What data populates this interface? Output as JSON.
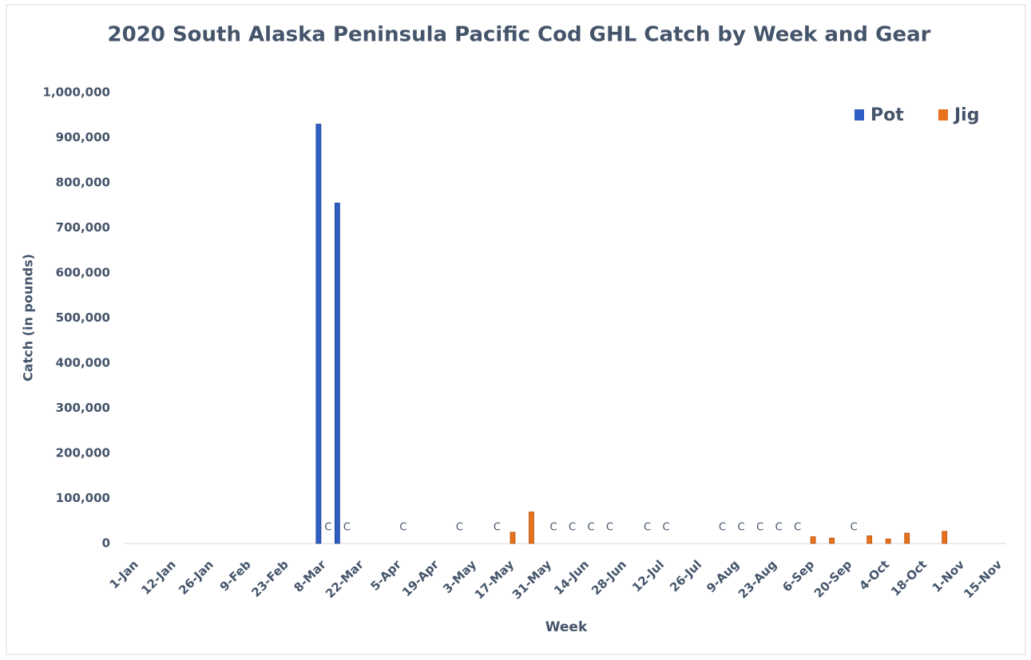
{
  "chart_data": {
    "type": "bar",
    "title": "2020 South Alaska Peninsula Pacific Cod GHL Catch by Week and Gear",
    "x_label": "Week",
    "y_label": "Catch (in pounds)",
    "legend": "top-right",
    "categories": [
      "1-Jan",
      null,
      "12-Jan",
      null,
      "26-Jan",
      null,
      "9-Feb",
      null,
      "23-Feb",
      null,
      "8-Mar",
      null,
      "22-Mar",
      null,
      "5-Apr",
      null,
      "19-Apr",
      null,
      "3-May",
      null,
      "17-May",
      null,
      "31-May",
      null,
      "14-Jun",
      null,
      "28-Jun",
      null,
      "12-Jul",
      null,
      "26-Jul",
      null,
      "9-Aug",
      null,
      "23-Aug",
      null,
      "6-Sep",
      null,
      "20-Sep",
      null,
      "4-Oct",
      null,
      "18-Oct",
      null,
      "1-Nov",
      null,
      "15-Nov"
    ],
    "series": [
      {
        "name": "Pot",
        "color": "#2f5fc4",
        "values": [
          null,
          null,
          null,
          null,
          null,
          null,
          null,
          null,
          null,
          null,
          930000,
          755000,
          null,
          null,
          null,
          null,
          null,
          null,
          null,
          null,
          null,
          null,
          null,
          null,
          null,
          null,
          null,
          null,
          null,
          null,
          null,
          null,
          null,
          null,
          null,
          null,
          null,
          null,
          null,
          null,
          null,
          null,
          null,
          null,
          null,
          null,
          null
        ]
      },
      {
        "name": "Jig",
        "color": "#e8711c",
        "values": [
          null,
          null,
          null,
          null,
          null,
          null,
          null,
          null,
          null,
          null,
          null,
          null,
          null,
          null,
          null,
          null,
          null,
          null,
          null,
          null,
          25000,
          70000,
          null,
          null,
          null,
          null,
          null,
          null,
          null,
          null,
          null,
          null,
          null,
          null,
          null,
          null,
          15000,
          12000,
          null,
          17000,
          10000,
          23000,
          null,
          27000,
          null,
          null,
          null
        ],
        "value_labels": [
          null,
          null,
          null,
          null,
          null,
          null,
          null,
          null,
          null,
          null,
          "C",
          "C",
          null,
          null,
          "C",
          null,
          null,
          "C",
          null,
          "C",
          null,
          null,
          "C",
          "C",
          "C",
          "C",
          null,
          "C",
          "C",
          null,
          null,
          "C",
          "C",
          "C",
          "C",
          "C",
          null,
          null,
          "C",
          null,
          null,
          null,
          null,
          null,
          null,
          null,
          null
        ]
      }
    ],
    "ylim": [
      0,
      1000000
    ],
    "yticks": [
      0,
      {
        "value": 100000,
        "label": "100,000"
      },
      {
        "value": 200000,
        "label": "200,000"
      },
      {
        "value": 300000,
        "label": "300,000"
      },
      {
        "value": 400000,
        "label": "400,000"
      },
      {
        "value": 500000,
        "label": "500,000"
      },
      {
        "value": 600000,
        "label": "600,000"
      },
      {
        "value": 700000,
        "label": "700,000"
      },
      {
        "value": 800000,
        "label": "800,000"
      },
      {
        "value": 900000,
        "label": "900,000"
      },
      {
        "value": 1000000,
        "label": "1,000,000"
      }
    ],
    "grid": false
  }
}
